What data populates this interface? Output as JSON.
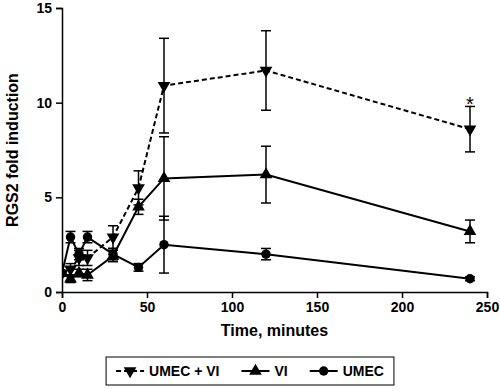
{
  "chart_data": {
    "type": "line",
    "x_label": "Time, minutes",
    "y_label": "RGS2 fold induction",
    "x": [
      0,
      5,
      10,
      15,
      30,
      45,
      60,
      120,
      240
    ],
    "xlim": [
      0,
      250
    ],
    "xticks": [
      0,
      50,
      100,
      150,
      200,
      250
    ],
    "ylim": [
      0,
      15
    ],
    "yticks": [
      0,
      5,
      10,
      15
    ],
    "grid": false,
    "legend": "bottom",
    "series": [
      {
        "name": "UMEC + VI",
        "color": "#000000",
        "marker": "triangle-down",
        "line_style": "dashed",
        "values": [
          1.0,
          1.2,
          1.8,
          1.8,
          2.9,
          5.5,
          10.9,
          11.7,
          8.6
        ],
        "errors": [
          0.1,
          0.3,
          0.4,
          0.4,
          0.6,
          0.9,
          2.5,
          2.1,
          1.2
        ]
      },
      {
        "name": "VI",
        "color": "#000000",
        "marker": "triangle",
        "line_style": "solid",
        "values": [
          1.0,
          0.7,
          1.0,
          0.9,
          1.9,
          4.5,
          6.0,
          6.2,
          3.2
        ],
        "errors": [
          0.1,
          0.2,
          0.2,
          0.3,
          0.3,
          0.4,
          2.2,
          1.5,
          0.6
        ]
      },
      {
        "name": "UMEC",
        "color": "#000000",
        "marker": "circle",
        "line_style": "solid",
        "values": [
          1.0,
          2.9,
          2.0,
          2.9,
          2.0,
          1.3,
          2.5,
          2.0,
          0.7
        ],
        "errors": [
          0.1,
          0.3,
          0.3,
          0.3,
          0.3,
          0.2,
          1.5,
          0.3,
          0.1
        ]
      }
    ],
    "annotations": [
      {
        "text": "*",
        "x": 240,
        "y": 10.1
      }
    ]
  }
}
